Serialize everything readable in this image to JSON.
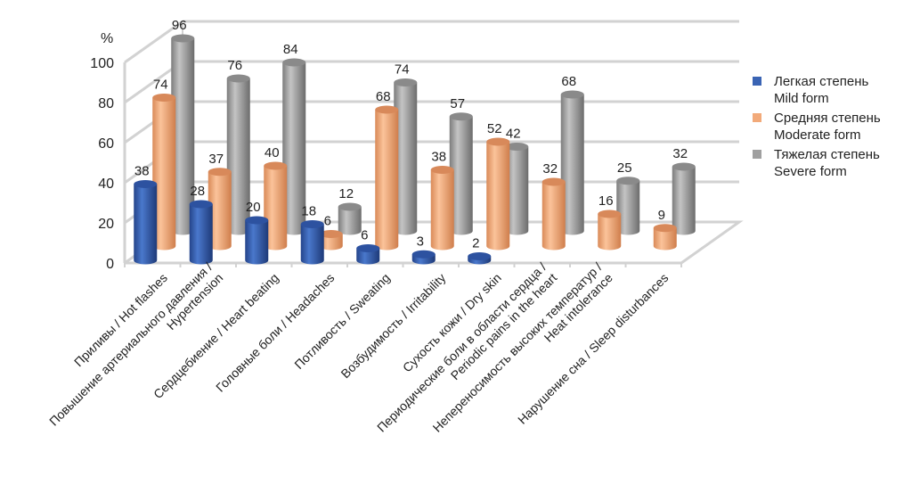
{
  "chart_data": {
    "type": "bar",
    "style": "3d-cylinder",
    "ylabel": "%",
    "ylim": [
      0,
      100
    ],
    "yticks": [
      "0",
      "20",
      "40",
      "60",
      "80",
      "100"
    ],
    "grid": true,
    "legend_position": "right",
    "categories": [
      [
        "Приливы / Hot flashes"
      ],
      [
        "Повышение артериального давления /",
        "Hypertension"
      ],
      [
        "Сердцебиение / Heart beating"
      ],
      [
        "Головные боли / Headaches"
      ],
      [
        "Потливость / Sweating"
      ],
      [
        "Возбудимость / Irritability"
      ],
      [
        "Сухость кожи / Dry skin"
      ],
      [
        "Периодические боли в области сердца /",
        "Periodic pains in the heart"
      ],
      [
        "Непереносимость высоких температур /",
        "Heat intolerance"
      ],
      [
        "Нарушение сна / Sleep disturbances"
      ]
    ],
    "series": [
      {
        "name": [
          "Легкая степень",
          "Mild form"
        ],
        "color": "#3a64b4",
        "values": [
          38,
          28,
          20,
          18,
          6,
          3,
          2,
          null,
          null,
          null
        ]
      },
      {
        "name": [
          "Средняя степень",
          "Moderate form"
        ],
        "color": "#f2aa7a",
        "values": [
          74,
          37,
          40,
          6,
          68,
          38,
          52,
          32,
          16,
          9
        ]
      },
      {
        "name": [
          "Тяжелая степень",
          "Severe form"
        ],
        "color": "#a0a0a0",
        "values": [
          96,
          76,
          84,
          12,
          74,
          57,
          42,
          68,
          25,
          32
        ]
      }
    ]
  }
}
